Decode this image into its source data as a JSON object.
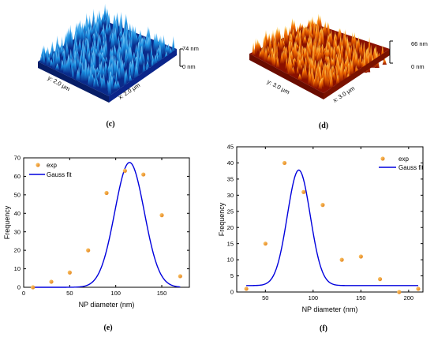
{
  "panels": {
    "c": {
      "label": "(c)",
      "z_top": "74 nm",
      "z_bottom": "0 nm",
      "y_axis": "y: 2.0 μm",
      "x_axis": "x: 2.0 μm",
      "color": "#1a8fe0"
    },
    "d": {
      "label": "(d)",
      "z_top": "66 nm",
      "z_bottom": "0 nm",
      "y_axis": "y: 3.0 μm",
      "x_axis": "x: 3.0 μm",
      "color": "#f06a00"
    },
    "e": {
      "label": "(e)"
    },
    "f": {
      "label": "(f)"
    }
  },
  "chart_data": [
    {
      "type": "scatter",
      "xlabel": "NP diameter (nm)",
      "ylabel": "Frequency",
      "xlim": [
        0,
        180
      ],
      "ylim": [
        0,
        70
      ],
      "xticks": [
        0,
        50,
        100,
        150
      ],
      "yticks": [
        0,
        10,
        20,
        30,
        40,
        50,
        60,
        70
      ],
      "legend": {
        "placement": "top-left",
        "entries": [
          "exp",
          "Gauss fit"
        ]
      },
      "series": [
        {
          "name": "exp",
          "color": "#f7a239",
          "x": [
            10,
            30,
            50,
            70,
            90,
            110,
            130,
            150,
            170
          ],
          "y": [
            0,
            3,
            8,
            20,
            51,
            63,
            61,
            39,
            6
          ]
        },
        {
          "name": "Gauss fit",
          "color": "#0000dd",
          "fit": {
            "y0": 0,
            "A": 67.5,
            "xc": 115,
            "w": 32
          },
          "x_range": [
            10,
            170
          ]
        }
      ]
    },
    {
      "type": "scatter",
      "xlabel": "NP diameter (nm)",
      "ylabel": "Frequency",
      "xlim": [
        20,
        215
      ],
      "ylim": [
        0,
        45
      ],
      "xticks": [
        50,
        100,
        150,
        200
      ],
      "yticks": [
        0,
        5,
        10,
        15,
        20,
        25,
        30,
        35,
        40,
        45
      ],
      "legend": {
        "placement": "top-right",
        "entries": [
          "exp",
          "Gauss fit"
        ]
      },
      "series": [
        {
          "name": "exp",
          "color": "#f7a239",
          "x": [
            30,
            50,
            70,
            90,
            110,
            130,
            150,
            170,
            190,
            210
          ],
          "y": [
            1,
            15,
            40,
            31,
            27,
            10,
            11,
            4,
            0,
            1
          ]
        },
        {
          "name": "Gauss fit",
          "color": "#0000dd",
          "fit": {
            "y0": 2,
            "A": 35.8,
            "xc": 85,
            "w": 24
          },
          "x_range": [
            30,
            210
          ]
        }
      ]
    }
  ]
}
